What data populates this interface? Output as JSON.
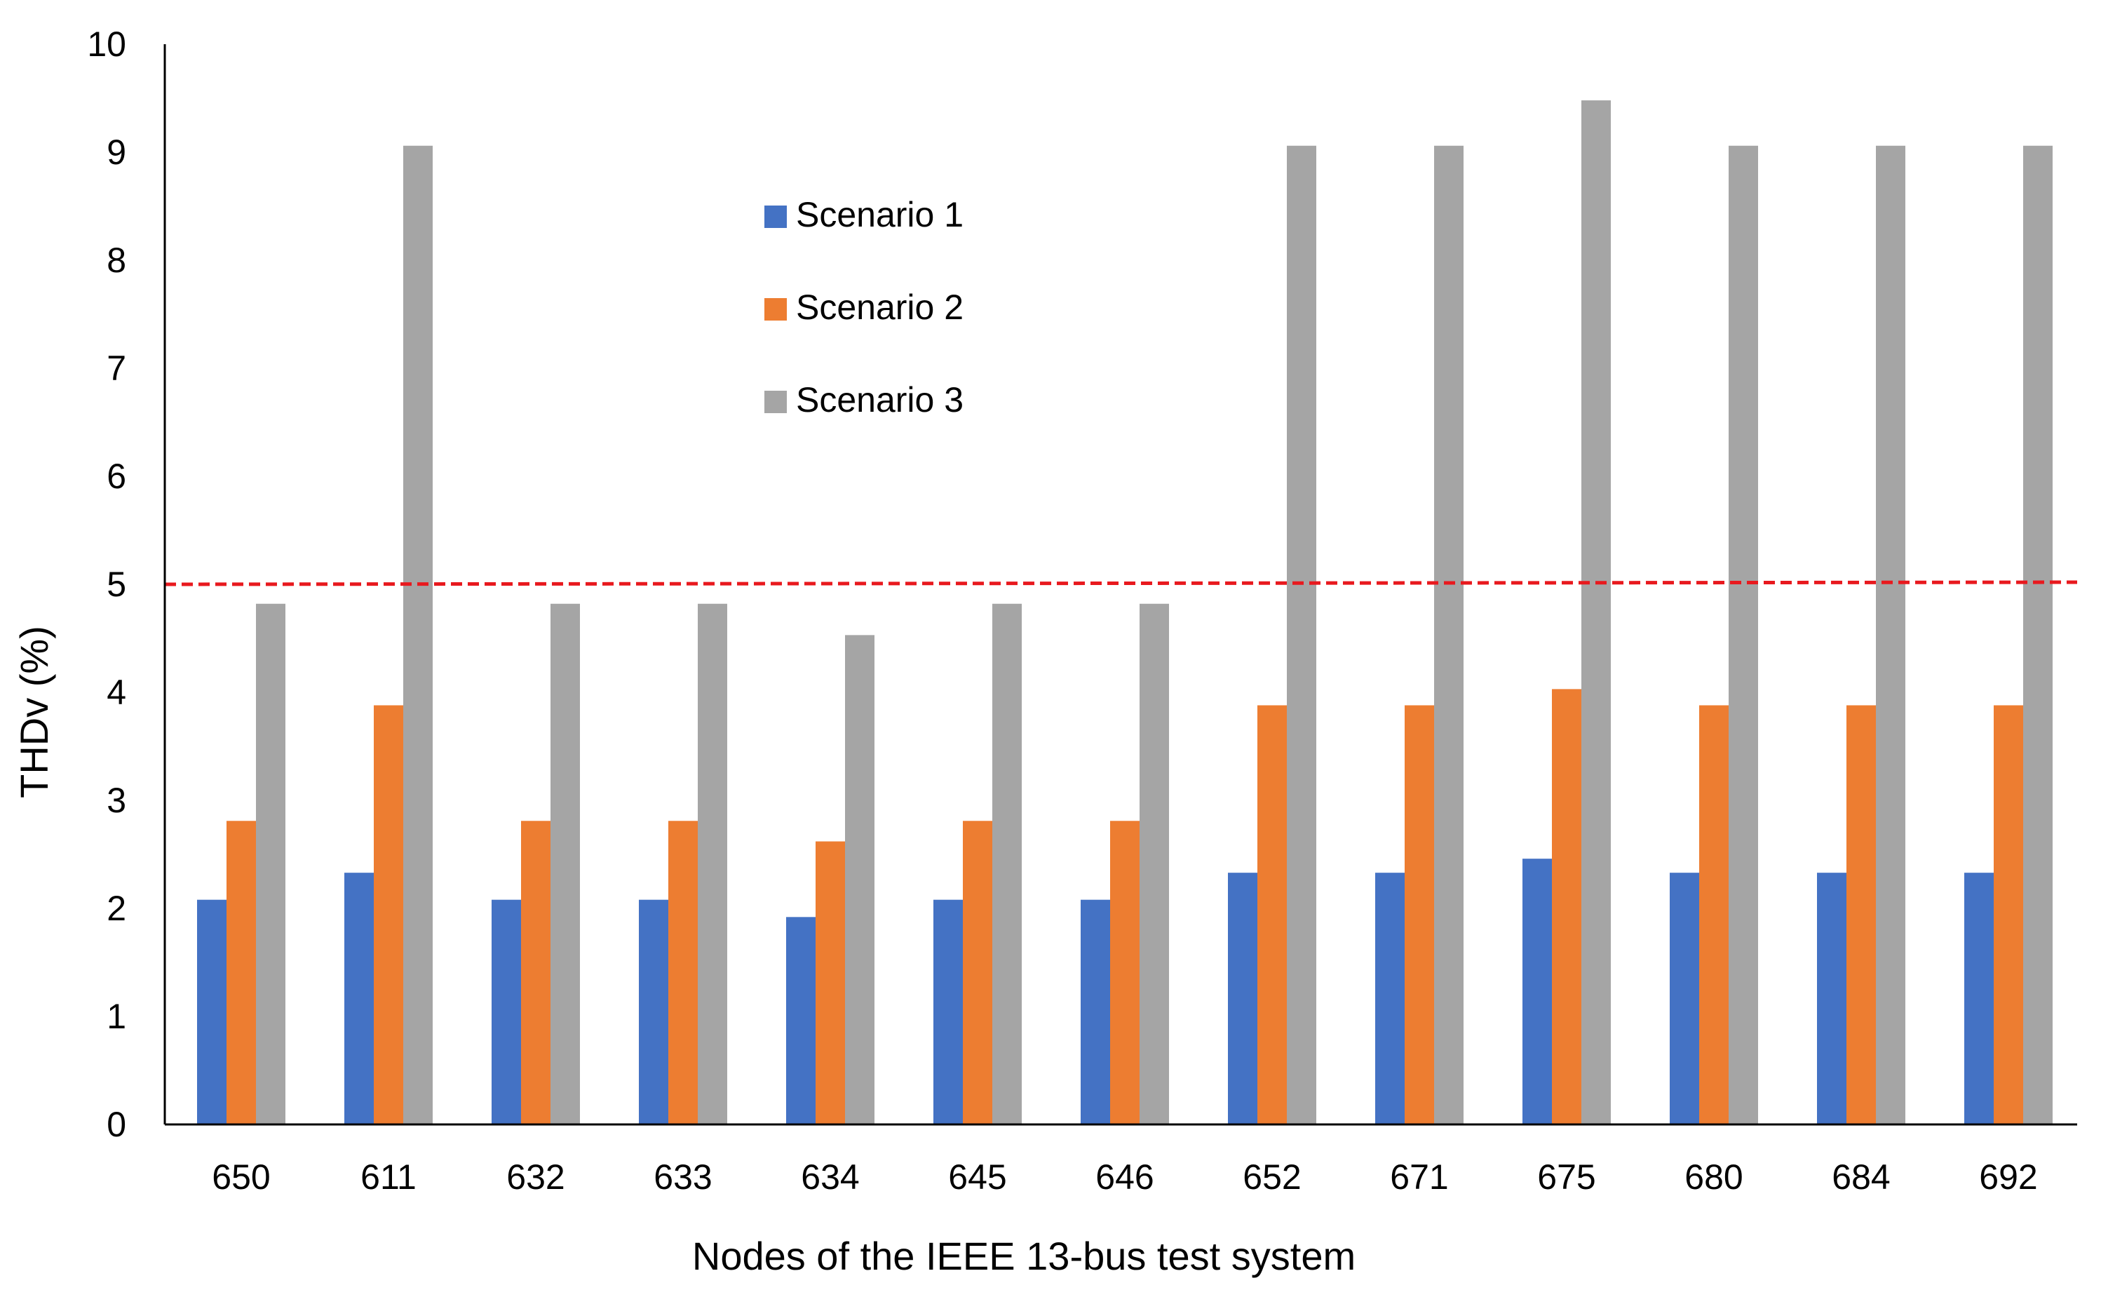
{
  "chart_data": {
    "type": "bar",
    "title": "",
    "xlabel": "Nodes of the IEEE 13-bus test system",
    "ylabel": "THDv (%)",
    "ylim": [
      0,
      10
    ],
    "yticks": [
      "0",
      "1",
      "2",
      "3",
      "4",
      "5",
      "6",
      "7",
      "8",
      "9",
      "10"
    ],
    "categories": [
      "650",
      "611",
      "632",
      "633",
      "634",
      "645",
      "646",
      "652",
      "671",
      "675",
      "680",
      "684",
      "692"
    ],
    "series": [
      {
        "name": "Scenario 1",
        "color": "#4472C4",
        "values": [
          2.08,
          2.33,
          2.08,
          2.08,
          1.92,
          2.08,
          2.08,
          2.33,
          2.33,
          2.46,
          2.33,
          2.33,
          2.33
        ]
      },
      {
        "name": "Scenario 2",
        "color": "#ED7D31",
        "values": [
          2.81,
          3.88,
          2.81,
          2.81,
          2.62,
          2.81,
          2.81,
          3.88,
          3.88,
          4.03,
          3.88,
          3.88,
          3.88
        ]
      },
      {
        "name": "Scenario 3",
        "color": "#A5A5A5",
        "values": [
          4.82,
          9.06,
          4.82,
          4.82,
          4.53,
          4.82,
          4.82,
          9.06,
          9.06,
          9.48,
          9.06,
          9.06,
          9.06
        ]
      }
    ],
    "reference_line": {
      "value": 5,
      "color": "#E8191E",
      "style": "dashed"
    },
    "legend_position": "top-center",
    "grid": false
  }
}
